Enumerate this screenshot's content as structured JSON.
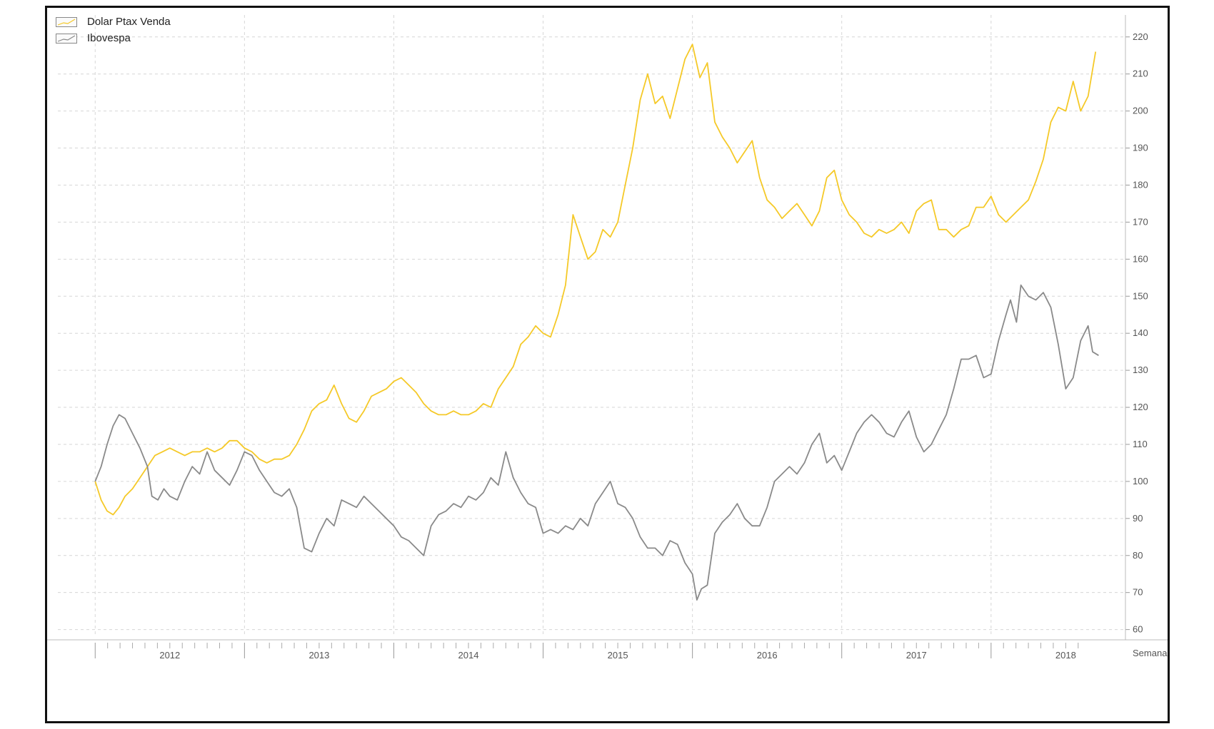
{
  "chart_data": {
    "type": "line",
    "title": "",
    "xlabel": "Semana",
    "ylabel": "",
    "x_ticks": [
      "2012",
      "2013",
      "2014",
      "2015",
      "2016",
      "2017",
      "2018"
    ],
    "y_ticks": [
      60,
      70,
      80,
      90,
      100,
      110,
      120,
      130,
      140,
      150,
      160,
      170,
      180,
      190,
      200,
      210,
      220
    ],
    "ylim": [
      58,
      224
    ],
    "xlim": [
      2011.75,
      2018.9
    ],
    "grid": true,
    "legend_position": "top-left",
    "series": [
      {
        "name": "Dolar Ptax Venda",
        "color": "#f5c928",
        "points": [
          [
            2012.0,
            100
          ],
          [
            2012.04,
            95
          ],
          [
            2012.08,
            92
          ],
          [
            2012.12,
            91
          ],
          [
            2012.16,
            93
          ],
          [
            2012.2,
            96
          ],
          [
            2012.25,
            98
          ],
          [
            2012.3,
            101
          ],
          [
            2012.35,
            104
          ],
          [
            2012.4,
            107
          ],
          [
            2012.45,
            108
          ],
          [
            2012.5,
            109
          ],
          [
            2012.55,
            108
          ],
          [
            2012.6,
            107
          ],
          [
            2012.65,
            108
          ],
          [
            2012.7,
            108
          ],
          [
            2012.75,
            109
          ],
          [
            2012.8,
            108
          ],
          [
            2012.85,
            109
          ],
          [
            2012.9,
            111
          ],
          [
            2012.95,
            111
          ],
          [
            2013.0,
            109
          ],
          [
            2013.05,
            108
          ],
          [
            2013.1,
            106
          ],
          [
            2013.15,
            105
          ],
          [
            2013.2,
            106
          ],
          [
            2013.25,
            106
          ],
          [
            2013.3,
            107
          ],
          [
            2013.35,
            110
          ],
          [
            2013.4,
            114
          ],
          [
            2013.45,
            119
          ],
          [
            2013.5,
            121
          ],
          [
            2013.55,
            122
          ],
          [
            2013.6,
            126
          ],
          [
            2013.65,
            121
          ],
          [
            2013.7,
            117
          ],
          [
            2013.75,
            116
          ],
          [
            2013.8,
            119
          ],
          [
            2013.85,
            123
          ],
          [
            2013.9,
            124
          ],
          [
            2013.95,
            125
          ],
          [
            2014.0,
            127
          ],
          [
            2014.05,
            128
          ],
          [
            2014.1,
            126
          ],
          [
            2014.15,
            124
          ],
          [
            2014.2,
            121
          ],
          [
            2014.25,
            119
          ],
          [
            2014.3,
            118
          ],
          [
            2014.35,
            118
          ],
          [
            2014.4,
            119
          ],
          [
            2014.45,
            118
          ],
          [
            2014.5,
            118
          ],
          [
            2014.55,
            119
          ],
          [
            2014.6,
            121
          ],
          [
            2014.65,
            120
          ],
          [
            2014.7,
            125
          ],
          [
            2014.75,
            128
          ],
          [
            2014.8,
            131
          ],
          [
            2014.85,
            137
          ],
          [
            2014.9,
            139
          ],
          [
            2014.95,
            142
          ],
          [
            2015.0,
            140
          ],
          [
            2015.05,
            139
          ],
          [
            2015.1,
            145
          ],
          [
            2015.15,
            153
          ],
          [
            2015.2,
            172
          ],
          [
            2015.25,
            166
          ],
          [
            2015.3,
            160
          ],
          [
            2015.35,
            162
          ],
          [
            2015.4,
            168
          ],
          [
            2015.45,
            166
          ],
          [
            2015.5,
            170
          ],
          [
            2015.55,
            180
          ],
          [
            2015.6,
            190
          ],
          [
            2015.65,
            203
          ],
          [
            2015.7,
            210
          ],
          [
            2015.75,
            202
          ],
          [
            2015.8,
            204
          ],
          [
            2015.85,
            198
          ],
          [
            2015.9,
            206
          ],
          [
            2015.95,
            214
          ],
          [
            2016.0,
            218
          ],
          [
            2016.05,
            209
          ],
          [
            2016.1,
            213
          ],
          [
            2016.15,
            197
          ],
          [
            2016.2,
            193
          ],
          [
            2016.25,
            190
          ],
          [
            2016.3,
            186
          ],
          [
            2016.35,
            189
          ],
          [
            2016.4,
            192
          ],
          [
            2016.45,
            182
          ],
          [
            2016.5,
            176
          ],
          [
            2016.55,
            174
          ],
          [
            2016.6,
            171
          ],
          [
            2016.65,
            173
          ],
          [
            2016.7,
            175
          ],
          [
            2016.75,
            172
          ],
          [
            2016.8,
            169
          ],
          [
            2016.85,
            173
          ],
          [
            2016.9,
            182
          ],
          [
            2016.95,
            184
          ],
          [
            2017.0,
            176
          ],
          [
            2017.05,
            172
          ],
          [
            2017.1,
            170
          ],
          [
            2017.15,
            167
          ],
          [
            2017.2,
            166
          ],
          [
            2017.25,
            168
          ],
          [
            2017.3,
            167
          ],
          [
            2017.35,
            168
          ],
          [
            2017.4,
            170
          ],
          [
            2017.45,
            167
          ],
          [
            2017.5,
            173
          ],
          [
            2017.55,
            175
          ],
          [
            2017.6,
            176
          ],
          [
            2017.65,
            168
          ],
          [
            2017.7,
            168
          ],
          [
            2017.75,
            166
          ],
          [
            2017.8,
            168
          ],
          [
            2017.85,
            169
          ],
          [
            2017.9,
            174
          ],
          [
            2017.95,
            174
          ],
          [
            2018.0,
            177
          ],
          [
            2018.05,
            172
          ],
          [
            2018.1,
            170
          ],
          [
            2018.15,
            172
          ],
          [
            2018.2,
            174
          ],
          [
            2018.25,
            176
          ],
          [
            2018.3,
            181
          ],
          [
            2018.35,
            187
          ],
          [
            2018.4,
            197
          ],
          [
            2018.45,
            201
          ],
          [
            2018.5,
            200
          ],
          [
            2018.55,
            208
          ],
          [
            2018.6,
            200
          ],
          [
            2018.65,
            204
          ],
          [
            2018.7,
            216
          ]
        ]
      },
      {
        "name": "Ibovespa",
        "color": "#8a8a8a",
        "points": [
          [
            2012.0,
            100
          ],
          [
            2012.04,
            104
          ],
          [
            2012.08,
            110
          ],
          [
            2012.12,
            115
          ],
          [
            2012.16,
            118
          ],
          [
            2012.2,
            117
          ],
          [
            2012.25,
            113
          ],
          [
            2012.3,
            109
          ],
          [
            2012.35,
            104
          ],
          [
            2012.38,
            96
          ],
          [
            2012.42,
            95
          ],
          [
            2012.46,
            98
          ],
          [
            2012.5,
            96
          ],
          [
            2012.55,
            95
          ],
          [
            2012.6,
            100
          ],
          [
            2012.65,
            104
          ],
          [
            2012.7,
            102
          ],
          [
            2012.75,
            108
          ],
          [
            2012.8,
            103
          ],
          [
            2012.85,
            101
          ],
          [
            2012.9,
            99
          ],
          [
            2012.95,
            103
          ],
          [
            2013.0,
            108
          ],
          [
            2013.05,
            107
          ],
          [
            2013.1,
            103
          ],
          [
            2013.15,
            100
          ],
          [
            2013.2,
            97
          ],
          [
            2013.25,
            96
          ],
          [
            2013.3,
            98
          ],
          [
            2013.35,
            93
          ],
          [
            2013.4,
            82
          ],
          [
            2013.45,
            81
          ],
          [
            2013.5,
            86
          ],
          [
            2013.55,
            90
          ],
          [
            2013.6,
            88
          ],
          [
            2013.65,
            95
          ],
          [
            2013.7,
            94
          ],
          [
            2013.75,
            93
          ],
          [
            2013.8,
            96
          ],
          [
            2013.85,
            94
          ],
          [
            2013.9,
            92
          ],
          [
            2013.95,
            90
          ],
          [
            2014.0,
            88
          ],
          [
            2014.05,
            85
          ],
          [
            2014.1,
            84
          ],
          [
            2014.15,
            82
          ],
          [
            2014.2,
            80
          ],
          [
            2014.25,
            88
          ],
          [
            2014.3,
            91
          ],
          [
            2014.35,
            92
          ],
          [
            2014.4,
            94
          ],
          [
            2014.45,
            93
          ],
          [
            2014.5,
            96
          ],
          [
            2014.55,
            95
          ],
          [
            2014.6,
            97
          ],
          [
            2014.65,
            101
          ],
          [
            2014.7,
            99
          ],
          [
            2014.75,
            108
          ],
          [
            2014.8,
            101
          ],
          [
            2014.85,
            97
          ],
          [
            2014.9,
            94
          ],
          [
            2014.95,
            93
          ],
          [
            2015.0,
            86
          ],
          [
            2015.05,
            87
          ],
          [
            2015.1,
            86
          ],
          [
            2015.15,
            88
          ],
          [
            2015.2,
            87
          ],
          [
            2015.25,
            90
          ],
          [
            2015.3,
            88
          ],
          [
            2015.35,
            94
          ],
          [
            2015.4,
            97
          ],
          [
            2015.45,
            100
          ],
          [
            2015.5,
            94
          ],
          [
            2015.55,
            93
          ],
          [
            2015.6,
            90
          ],
          [
            2015.65,
            85
          ],
          [
            2015.7,
            82
          ],
          [
            2015.75,
            82
          ],
          [
            2015.8,
            80
          ],
          [
            2015.85,
            84
          ],
          [
            2015.9,
            83
          ],
          [
            2015.95,
            78
          ],
          [
            2016.0,
            75
          ],
          [
            2016.03,
            68
          ],
          [
            2016.06,
            71
          ],
          [
            2016.1,
            72
          ],
          [
            2016.15,
            86
          ],
          [
            2016.2,
            89
          ],
          [
            2016.25,
            91
          ],
          [
            2016.3,
            94
          ],
          [
            2016.35,
            90
          ],
          [
            2016.4,
            88
          ],
          [
            2016.45,
            88
          ],
          [
            2016.5,
            93
          ],
          [
            2016.55,
            100
          ],
          [
            2016.6,
            102
          ],
          [
            2016.65,
            104
          ],
          [
            2016.7,
            102
          ],
          [
            2016.75,
            105
          ],
          [
            2016.8,
            110
          ],
          [
            2016.85,
            113
          ],
          [
            2016.9,
            105
          ],
          [
            2016.95,
            107
          ],
          [
            2017.0,
            103
          ],
          [
            2017.05,
            108
          ],
          [
            2017.1,
            113
          ],
          [
            2017.15,
            116
          ],
          [
            2017.2,
            118
          ],
          [
            2017.25,
            116
          ],
          [
            2017.3,
            113
          ],
          [
            2017.35,
            112
          ],
          [
            2017.4,
            116
          ],
          [
            2017.45,
            119
          ],
          [
            2017.5,
            112
          ],
          [
            2017.55,
            108
          ],
          [
            2017.6,
            110
          ],
          [
            2017.65,
            114
          ],
          [
            2017.7,
            118
          ],
          [
            2017.75,
            125
          ],
          [
            2017.8,
            133
          ],
          [
            2017.85,
            133
          ],
          [
            2017.9,
            134
          ],
          [
            2017.95,
            128
          ],
          [
            2018.0,
            129
          ],
          [
            2018.05,
            138
          ],
          [
            2018.1,
            145
          ],
          [
            2018.13,
            149
          ],
          [
            2018.17,
            143
          ],
          [
            2018.2,
            153
          ],
          [
            2018.25,
            150
          ],
          [
            2018.3,
            149
          ],
          [
            2018.35,
            151
          ],
          [
            2018.4,
            147
          ],
          [
            2018.45,
            137
          ],
          [
            2018.5,
            125
          ],
          [
            2018.55,
            128
          ],
          [
            2018.6,
            138
          ],
          [
            2018.65,
            142
          ],
          [
            2018.68,
            135
          ],
          [
            2018.72,
            134
          ]
        ]
      }
    ]
  }
}
